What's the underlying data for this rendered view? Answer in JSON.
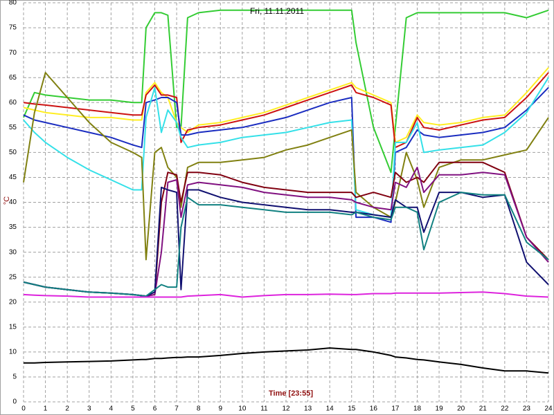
{
  "chart_data": {
    "type": "line",
    "title": "Fri, 11.11.2011",
    "x_label": "Time [23:55]",
    "y_label": "°C",
    "xlim": [
      0,
      24
    ],
    "ylim": [
      0,
      80
    ],
    "xticks": [
      0,
      1,
      2,
      3,
      4,
      5,
      6,
      7,
      8,
      9,
      10,
      11,
      12,
      13,
      14,
      15,
      16,
      17,
      18,
      19,
      20,
      21,
      22,
      23,
      24
    ],
    "yticks": [
      0,
      5,
      10,
      15,
      20,
      25,
      30,
      35,
      40,
      45,
      50,
      55,
      60,
      65,
      70,
      75,
      80
    ],
    "grid": true,
    "x": [
      0,
      0.5,
      1,
      2,
      3,
      4,
      5,
      5.4,
      5.6,
      6,
      6.3,
      6.6,
      7,
      7.2,
      7.5,
      8,
      9,
      10,
      11,
      12,
      13,
      14,
      15,
      15.2,
      16,
      16.8,
      17,
      17.5,
      18,
      18.3,
      19,
      20,
      21,
      22,
      23,
      24
    ],
    "series": [
      {
        "color": "#33cc33",
        "values": [
          57,
          62,
          61.5,
          61,
          60.5,
          60.5,
          60,
          60,
          75,
          78,
          78,
          77.5,
          55,
          55,
          77,
          78,
          78.5,
          78.5,
          78.5,
          78.5,
          78.5,
          78.5,
          78.5,
          72,
          55,
          46,
          55,
          77,
          78,
          78,
          78,
          78,
          78,
          78,
          77,
          78.5
        ]
      },
      {
        "color": "#ffee22",
        "values": [
          59,
          58.5,
          58,
          57.5,
          57,
          57,
          56.5,
          56.5,
          62,
          64,
          62,
          61,
          56,
          55,
          54,
          55.5,
          56,
          57,
          58,
          59.5,
          61,
          62.5,
          64,
          63,
          61.5,
          60,
          52,
          53,
          57.5,
          56,
          55.5,
          56,
          57,
          57.5,
          62,
          67
        ]
      },
      {
        "color": "#cc1111",
        "values": [
          60,
          59.7,
          59.5,
          59,
          58.5,
          58,
          57.5,
          57.5,
          61.5,
          63.5,
          61.5,
          61.5,
          61,
          52,
          54.5,
          55,
          55.5,
          56.5,
          57.5,
          59,
          60.5,
          62,
          63.5,
          62,
          61,
          59.5,
          51,
          52,
          57,
          55,
          54.5,
          55.5,
          56.5,
          57,
          61,
          66
        ]
      },
      {
        "color": "#1a2cc0",
        "values": [
          57.5,
          56.5,
          56,
          55,
          54,
          53,
          51.5,
          51,
          60,
          60.5,
          61,
          61,
          60,
          53.5,
          53.5,
          54,
          54.5,
          55,
          56,
          57,
          58.5,
          60,
          61,
          37,
          37,
          36,
          50,
          51,
          54.5,
          53.5,
          53,
          53.5,
          54,
          55,
          58.5,
          63
        ]
      },
      {
        "color": "#33e0e8",
        "values": [
          56.5,
          54,
          52,
          49,
          46.5,
          44.5,
          42.5,
          42.5,
          57,
          63,
          54,
          58.5,
          56,
          53,
          51,
          51.5,
          52,
          53,
          53.5,
          54,
          55,
          56,
          56.5,
          38.5,
          37.5,
          37,
          52,
          52,
          56,
          50,
          50.5,
          51,
          51.5,
          54,
          58,
          65
        ]
      },
      {
        "color": "#808010",
        "values": [
          44,
          58,
          66,
          61,
          56,
          52,
          50,
          49,
          28.5,
          50,
          51,
          47,
          45,
          39,
          47,
          48,
          48,
          48.5,
          49,
          50.5,
          51.5,
          53,
          54.5,
          42,
          39,
          37,
          40,
          50,
          44.5,
          39,
          47,
          48.5,
          48.5,
          49.5,
          50.5,
          57
        ]
      },
      {
        "color": "#800010",
        "values": [
          24,
          23.5,
          23,
          22.5,
          22,
          21.8,
          21.5,
          21.3,
          21.2,
          21.5,
          40,
          46,
          45.5,
          40,
          46,
          46,
          45.5,
          44,
          43,
          42.5,
          42,
          42,
          42,
          41,
          42,
          41,
          46,
          44,
          45,
          44,
          48,
          48,
          48,
          46,
          33,
          28.5
        ]
      },
      {
        "color": "#801080",
        "values": [
          24,
          23.5,
          23,
          22.5,
          22,
          21.8,
          21.5,
          21.3,
          21.2,
          21.5,
          30,
          44,
          44.5,
          37,
          43.5,
          44,
          43.5,
          43,
          42,
          41.5,
          41,
          41,
          40.5,
          40,
          39,
          38.5,
          44,
          43,
          47,
          42,
          45.5,
          45.5,
          46,
          45.5,
          33,
          28
        ]
      },
      {
        "color": "#101070",
        "values": [
          24,
          23.5,
          23,
          22.5,
          22,
          21.8,
          21.5,
          21.3,
          21.2,
          22,
          43,
          42.5,
          42,
          22.5,
          42.5,
          42.5,
          41,
          40,
          39.5,
          39,
          38.5,
          38.5,
          38,
          38,
          37.5,
          37,
          40.5,
          39,
          39,
          34,
          42,
          42,
          41,
          41.5,
          28,
          23.5
        ]
      },
      {
        "color": "#108080",
        "values": [
          24,
          23.5,
          23,
          22.5,
          22,
          21.8,
          21.5,
          21.3,
          21.2,
          22.5,
          23.5,
          23,
          23,
          35,
          41,
          39.5,
          39.5,
          39,
          38.5,
          38,
          38,
          38,
          37.5,
          38,
          37,
          36.5,
          39,
          39,
          38,
          30.5,
          40,
          42,
          41.5,
          41.5,
          32,
          28.5
        ]
      },
      {
        "color": "#dd22dd",
        "values": [
          21.5,
          21.4,
          21.3,
          21.2,
          21,
          21,
          21,
          21,
          21,
          21,
          21,
          21,
          21,
          21,
          21.2,
          21.3,
          21.5,
          21,
          21.3,
          21.5,
          21.5,
          21.6,
          21.5,
          21.5,
          21.7,
          21.7,
          21.8,
          21.8,
          21.8,
          21.8,
          21.8,
          21.9,
          22,
          21.7,
          21.2,
          21
        ]
      },
      {
        "color": "#000000",
        "values": [
          7.8,
          7.8,
          7.9,
          8,
          8.1,
          8.2,
          8.4,
          8.5,
          8.5,
          8.7,
          8.7,
          8.8,
          8.9,
          8.9,
          9,
          9,
          9.3,
          9.7,
          10,
          10.2,
          10.4,
          10.8,
          10.5,
          10.5,
          10,
          9.3,
          9,
          8.8,
          8.5,
          8.4,
          8,
          7.5,
          6.8,
          6.2,
          6.2,
          5.8
        ]
      }
    ]
  }
}
